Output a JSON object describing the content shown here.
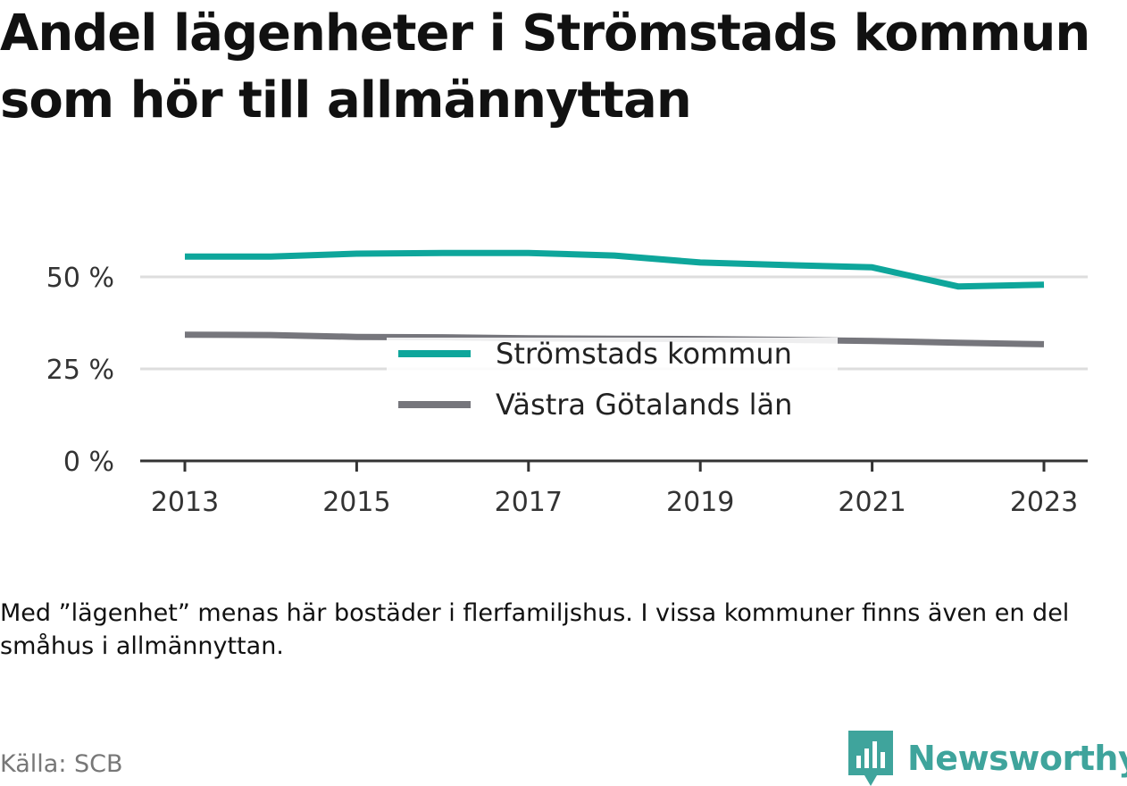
{
  "title": "Andel lägenheter i Strömstads kommun som hör till allmännyttan",
  "note": "Med ”lägenhet” menas här bostäder i flerfamiljshus. I vissa kommuner finns även en del småhus i allmännyttan.",
  "source": "Källa: SCB",
  "brand": "Newsworthy",
  "colors": {
    "stromstad": "#0ea69b",
    "vastra": "#76767c",
    "brand": "#3fa49c",
    "grid": "#dddddd",
    "axis": "#333333"
  },
  "icons": {
    "logo": "newsworthy-bar-chart-icon"
  },
  "chart_data": {
    "type": "line",
    "x": [
      2013,
      2014,
      2015,
      2016,
      2017,
      2018,
      2019,
      2020,
      2021,
      2022,
      2023
    ],
    "series": [
      {
        "name": "Strömstads kommun",
        "values": [
          55.5,
          55.5,
          56.3,
          56.5,
          56.5,
          55.8,
          53.9,
          53.2,
          52.6,
          47.4,
          47.9
        ]
      },
      {
        "name": "Västra Götalands län",
        "values": [
          34.3,
          34.2,
          33.7,
          33.6,
          33.3,
          33.2,
          33.1,
          32.9,
          32.6,
          32.1,
          31.7
        ]
      }
    ],
    "y_ticks": [
      0,
      25,
      50
    ],
    "y_tick_labels": [
      "0 %",
      "25 %",
      "50 %"
    ],
    "x_ticks": [
      2013,
      2015,
      2017,
      2019,
      2021,
      2023
    ],
    "x_tick_labels": [
      "2013",
      "2015",
      "2017",
      "2019",
      "2021",
      "2023"
    ],
    "ylim": [
      0,
      60
    ],
    "xlim": [
      2012.5,
      2023.5
    ],
    "grid": true,
    "legend": "center"
  }
}
